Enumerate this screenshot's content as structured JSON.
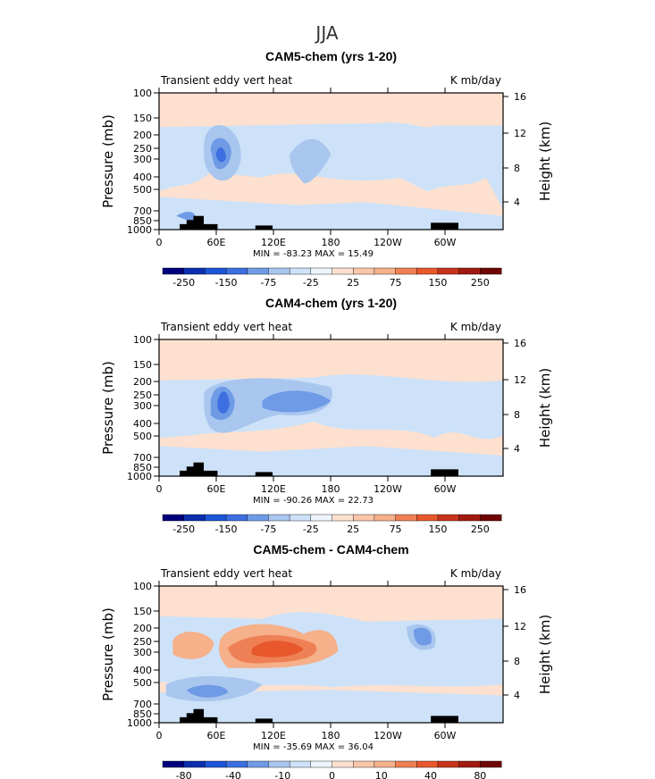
{
  "figure_title": "JJA",
  "colors": {
    "bg": "#fde0cf",
    "lb": "#cde2f8",
    "lb2": "#a9c6ef",
    "mb": "#6f9be6",
    "db": "#3d6fe0",
    "dkb": "#1f4fd6",
    "lr": "#f6b08a",
    "mr": "#ef8055",
    "dr": "#e8582c",
    "terrain": "#000000"
  },
  "colorbar_colors": [
    "#00007e",
    "#0b2fae",
    "#1d55d9",
    "#3d6fe0",
    "#6f9be6",
    "#a9c6ef",
    "#cde2f8",
    "#eef4fc",
    "#fde0cf",
    "#f9c6aa",
    "#f6b08a",
    "#ef8055",
    "#e8582c",
    "#c8331b",
    "#a11a10",
    "#6f0503"
  ],
  "chart_data": [
    {
      "type": "heatmap",
      "title": "CAM5-chem (yrs 1-20)",
      "variable_label": "Transient eddy vert heat",
      "units_label": "K mb/day",
      "xlabel": "",
      "ylabel": "Pressure (mb)",
      "y2label": "Height (km)",
      "x_ticks": [
        "0",
        "60E",
        "120E",
        "180",
        "120W",
        "60W"
      ],
      "y_ticks": [
        "100",
        "150",
        "200",
        "250",
        "300",
        "400",
        "500",
        "700",
        "850",
        "1000"
      ],
      "y2_ticks": [
        "16",
        "12",
        "8",
        "4"
      ],
      "min_max_text": "MIN = -83.23   MAX =  15.49",
      "min": -83.23,
      "max": 15.49,
      "colorbar_labels": [
        "-250",
        "-150",
        "-75",
        "-25",
        "25",
        "75",
        "150",
        "250"
      ]
    },
    {
      "type": "heatmap",
      "title": "CAM4-chem (yrs 1-20)",
      "variable_label": "Transient eddy vert heat",
      "units_label": "K mb/day",
      "xlabel": "",
      "ylabel": "Pressure (mb)",
      "y2label": "Height (km)",
      "x_ticks": [
        "0",
        "60E",
        "120E",
        "180",
        "120W",
        "60W"
      ],
      "y_ticks": [
        "100",
        "150",
        "200",
        "250",
        "300",
        "400",
        "500",
        "700",
        "850",
        "1000"
      ],
      "y2_ticks": [
        "16",
        "12",
        "8",
        "4"
      ],
      "min_max_text": "MIN = -90.26   MAX =  22.73",
      "min": -90.26,
      "max": 22.73,
      "colorbar_labels": [
        "-250",
        "-150",
        "-75",
        "-25",
        "25",
        "75",
        "150",
        "250"
      ]
    },
    {
      "type": "heatmap",
      "title": "CAM5-chem - CAM4-chem",
      "variable_label": "Transient eddy vert heat",
      "units_label": "K mb/day",
      "xlabel": "",
      "ylabel": "Pressure (mb)",
      "y2label": "Height (km)",
      "x_ticks": [
        "0",
        "60E",
        "120E",
        "180",
        "120W",
        "60W"
      ],
      "y_ticks": [
        "100",
        "150",
        "200",
        "250",
        "300",
        "400",
        "500",
        "700",
        "850",
        "1000"
      ],
      "y2_ticks": [
        "16",
        "12",
        "8",
        "4"
      ],
      "min_max_text": "MIN = -35.69   MAX =  36.04",
      "min": -35.69,
      "max": 36.04,
      "colorbar_labels": [
        "-80",
        "-40",
        "-10",
        "0",
        "10",
        "40",
        "80"
      ]
    }
  ]
}
